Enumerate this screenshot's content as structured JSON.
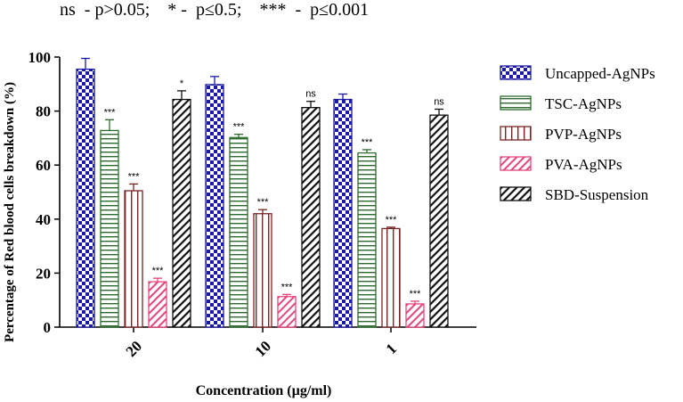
{
  "chart_data": {
    "type": "bar",
    "note": "ns  - p>0.05;    * -  p≤0.5;    ***  -  p≤0.001",
    "xlabel": "Concentration (µg/ml)",
    "ylabel": "Percentage of Red blood cells breakdown (%)",
    "ylim": [
      0,
      100
    ],
    "yticks": [
      0,
      20,
      40,
      60,
      80,
      100
    ],
    "categories": [
      "20",
      "10",
      "1"
    ],
    "legend_position": "right",
    "series": [
      {
        "name": "Uncapped-AgNPs",
        "pattern": "checker",
        "color": "#1a1aa6",
        "values": [
          95.5,
          89.8,
          84.3
        ],
        "errors": [
          4.0,
          3.0,
          2.0
        ],
        "annotations": [
          "",
          "",
          ""
        ]
      },
      {
        "name": "TSC-AgNPs",
        "pattern": "hlines",
        "color": "#2e6b2e",
        "values": [
          72.8,
          70.2,
          64.5
        ],
        "errors": [
          4.0,
          1.2,
          1.2
        ],
        "annotations": [
          "***",
          "***",
          "***"
        ]
      },
      {
        "name": "PVP-AgNPs",
        "pattern": "vlines",
        "color": "#7a2424",
        "values": [
          50.5,
          42.0,
          36.5
        ],
        "errors": [
          2.5,
          1.5,
          0.5
        ],
        "annotations": [
          "***",
          "***",
          "***"
        ]
      },
      {
        "name": "PVA-AgNPs",
        "pattern": "diag",
        "color": "#e8457a",
        "values": [
          16.8,
          11.3,
          8.6
        ],
        "errors": [
          1.3,
          0.8,
          1.0
        ],
        "annotations": [
          "***",
          "***",
          "***"
        ]
      },
      {
        "name": "SBD-Suspension",
        "pattern": "diag-black",
        "color": "#111111",
        "values": [
          84.3,
          81.3,
          78.5
        ],
        "errors": [
          3.2,
          2.3,
          2.2
        ],
        "annotations": [
          "*",
          "ns",
          "ns"
        ]
      }
    ]
  }
}
